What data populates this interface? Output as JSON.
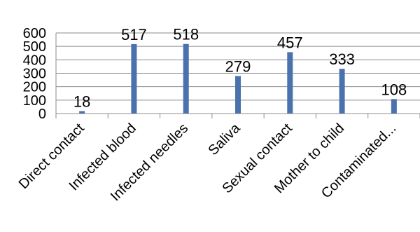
{
  "chart_data": {
    "type": "bar",
    "categories": [
      "Direct contact",
      "Infected blood",
      "Infected needles",
      "Saliva",
      "Sexual contact",
      "Mother to child",
      "Contaminated..."
    ],
    "values": [
      18,
      517,
      518,
      279,
      457,
      333,
      108
    ],
    "data_labels": [
      "18",
      "517",
      "518",
      "279",
      "457",
      "333",
      "108"
    ],
    "y_ticks": [
      "0",
      "100",
      "200",
      "300",
      "400",
      "500",
      "600"
    ],
    "ylim": [
      0,
      600
    ],
    "grid": true,
    "legend": "none",
    "colors": {
      "bar": "#4a72ae",
      "grid": "#8c8c8c",
      "axis": "#8c8c8c"
    }
  }
}
